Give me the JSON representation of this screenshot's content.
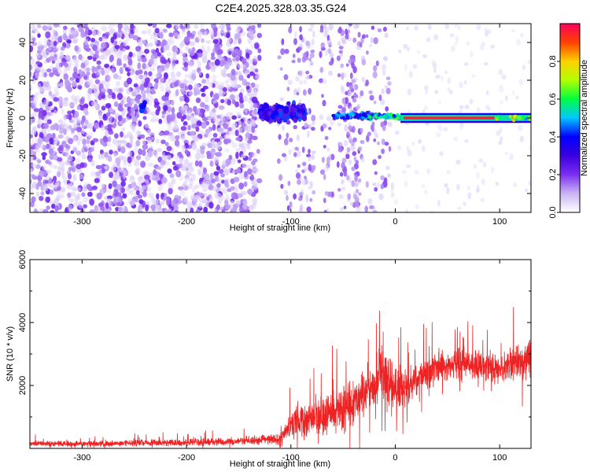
{
  "title": "C2E4.2025.328.03.35.G24",
  "chart_data": [
    {
      "type": "heatmap",
      "xlabel": "Height of straight line (km)",
      "ylabel": "Frequency (Hz)",
      "xlim": [
        -350,
        130
      ],
      "ylim": [
        -50,
        50
      ],
      "xticks": [
        -300,
        -200,
        -100,
        0,
        100
      ],
      "yticks": [
        -40,
        -20,
        0,
        20,
        40
      ],
      "colorbar": {
        "label": "Normalized spectral amplitude",
        "range": [
          0,
          1
        ],
        "ticks": [
          "0.0",
          "0.2",
          "0.4",
          "0.6",
          "0.8"
        ],
        "colors": [
          "#ffffff",
          "#c9b3f5",
          "#7a2ef0",
          "#3a00e0",
          "#0000ff",
          "#00c8ff",
          "#00ff40",
          "#b4ff00",
          "#ffd000",
          "#ff4000",
          "#ff0060"
        ]
      },
      "features": [
        {
          "name": "noise",
          "x_range": [
            -350,
            -130
          ],
          "f_range": [
            -50,
            50
          ],
          "level": 0.15
        },
        {
          "name": "blob",
          "x": -242,
          "f": 6,
          "level": 0.3
        },
        {
          "name": "band",
          "x_range": [
            -130,
            -85
          ],
          "f": 3,
          "level": 0.35
        },
        {
          "name": "band",
          "x_range": [
            -60,
            5
          ],
          "f": 1,
          "level": 0.45
        },
        {
          "name": "line",
          "x_range": [
            5,
            130
          ],
          "f": 0,
          "level": 0.95
        }
      ]
    },
    {
      "type": "line",
      "xlabel": "Height of straight line (km)",
      "ylabel": "SNR (10 * v/v)",
      "xlim": [
        -350,
        130
      ],
      "ylim": [
        0,
        6000
      ],
      "xticks": [
        -300,
        -200,
        -100,
        0,
        100
      ],
      "yticks": [
        2000,
        4000,
        6000
      ],
      "color": "#ee2222",
      "x": [
        -350,
        -300,
        -250,
        -200,
        -150,
        -110,
        -100,
        -80,
        -60,
        -40,
        -25,
        -15,
        -5,
        10,
        25,
        40,
        60,
        80,
        100,
        115,
        130
      ],
      "y": [
        150,
        150,
        170,
        190,
        230,
        300,
        700,
        1000,
        1150,
        1400,
        1850,
        2300,
        2000,
        1900,
        2300,
        2550,
        2700,
        2700,
        2500,
        2750,
        2900
      ],
      "spread": [
        110,
        110,
        120,
        130,
        160,
        200,
        550,
        700,
        800,
        900,
        1100,
        1300,
        1100,
        700,
        700,
        600,
        600,
        550,
        600,
        700,
        800
      ]
    }
  ]
}
